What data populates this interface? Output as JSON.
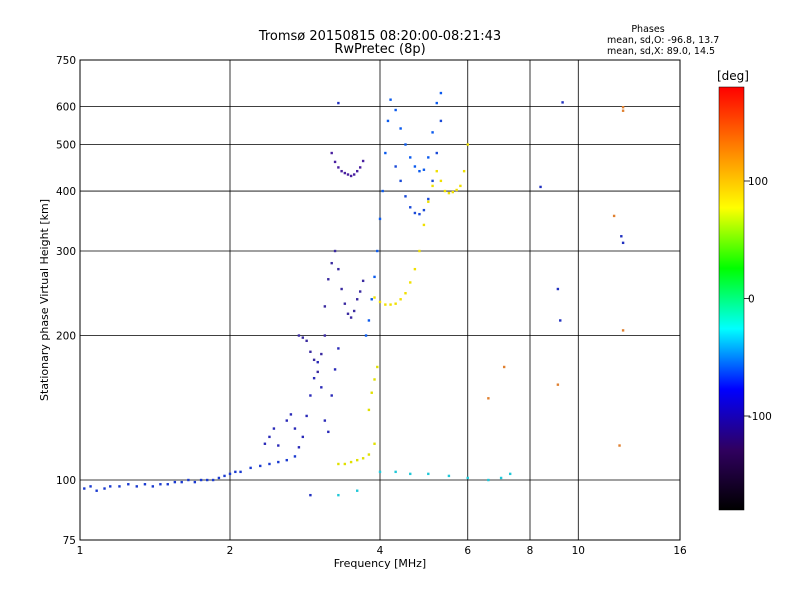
{
  "chart_data": {
    "type": "scatter",
    "title": "Tromsø 20150815 08:20:00-08:21:43",
    "subtitle": "RwPretec (8p)",
    "xlabel": "Frequency [MHz]",
    "ylabel": "Stationary phase Virtual Height [km]",
    "x_scale": "log",
    "y_scale": "log",
    "xlim": [
      1,
      16
    ],
    "ylim": [
      75,
      750
    ],
    "x_ticks": [
      1,
      2,
      4,
      6,
      8,
      10,
      16
    ],
    "y_ticks": [
      75,
      100,
      200,
      300,
      400,
      500,
      600,
      750
    ],
    "grid": true,
    "phase_info": {
      "title": "Phases",
      "line_o": "mean, sd,O: -96.8, 13.7",
      "line_x": "mean, sd,X:  89.0, 14.5"
    },
    "colorbar": {
      "label": "[deg]",
      "range": [
        -180,
        180
      ],
      "ticks": [
        100,
        0,
        -100
      ],
      "colors": [
        "#ff0000",
        "#ff8000",
        "#ffff00",
        "#00ff00",
        "#00ffff",
        "#0000ff",
        "#300060",
        "#000000"
      ]
    },
    "series": [
      {
        "color": "#1a3ad0",
        "points": [
          [
            1.02,
            96
          ],
          [
            1.05,
            97
          ],
          [
            1.08,
            95
          ],
          [
            1.12,
            96
          ],
          [
            1.15,
            97
          ],
          [
            1.2,
            97
          ],
          [
            1.25,
            98
          ],
          [
            1.3,
            97
          ],
          [
            1.35,
            98
          ],
          [
            1.4,
            97
          ],
          [
            1.45,
            98
          ],
          [
            1.5,
            98
          ],
          [
            1.55,
            99
          ],
          [
            1.6,
            99
          ],
          [
            1.65,
            100
          ],
          [
            1.7,
            99
          ],
          [
            1.75,
            100
          ],
          [
            1.8,
            100
          ],
          [
            1.85,
            100
          ],
          [
            1.9,
            101
          ],
          [
            1.95,
            102
          ],
          [
            2.0,
            103
          ],
          [
            2.05,
            104
          ],
          [
            2.1,
            104
          ],
          [
            2.2,
            106
          ],
          [
            2.3,
            107
          ],
          [
            2.4,
            108
          ],
          [
            2.5,
            109
          ],
          [
            2.6,
            110
          ],
          [
            2.7,
            112
          ]
        ]
      },
      {
        "color": "#2a2ab8",
        "points": [
          [
            2.35,
            119
          ],
          [
            2.4,
            123
          ],
          [
            2.45,
            128
          ],
          [
            2.5,
            118
          ],
          [
            2.6,
            133
          ],
          [
            2.65,
            137
          ],
          [
            2.7,
            128
          ],
          [
            2.75,
            117
          ],
          [
            2.8,
            123
          ],
          [
            2.85,
            136
          ],
          [
            2.9,
            150
          ],
          [
            2.95,
            163
          ],
          [
            3.0,
            176
          ],
          [
            3.05,
            156
          ],
          [
            3.1,
            133
          ],
          [
            3.15,
            126
          ],
          [
            3.2,
            150
          ],
          [
            3.25,
            170
          ],
          [
            3.3,
            188
          ]
        ]
      },
      {
        "color": "#3a2aa0",
        "points": [
          [
            2.75,
            200
          ],
          [
            2.8,
            198
          ],
          [
            2.85,
            195
          ],
          [
            2.9,
            185
          ],
          [
            2.95,
            178
          ],
          [
            3.0,
            168
          ],
          [
            3.05,
            183
          ],
          [
            3.1,
            200
          ],
          [
            3.1,
            230
          ],
          [
            3.15,
            262
          ],
          [
            3.2,
            283
          ],
          [
            3.25,
            300
          ],
          [
            3.3,
            275
          ],
          [
            3.35,
            250
          ],
          [
            3.4,
            233
          ],
          [
            3.45,
            222
          ],
          [
            3.5,
            218
          ],
          [
            3.55,
            225
          ],
          [
            3.6,
            238
          ],
          [
            3.65,
            247
          ],
          [
            3.7,
            260
          ]
        ]
      },
      {
        "color": "#4a20a0",
        "points": [
          [
            3.2,
            480
          ],
          [
            3.25,
            460
          ],
          [
            3.3,
            448
          ],
          [
            3.35,
            440
          ],
          [
            3.4,
            436
          ],
          [
            3.45,
            433
          ],
          [
            3.5,
            430
          ],
          [
            3.55,
            433
          ],
          [
            3.6,
            440
          ],
          [
            3.65,
            448
          ],
          [
            3.7,
            462
          ]
        ]
      },
      {
        "color": "#0a5aee",
        "points": [
          [
            3.75,
            200
          ],
          [
            3.8,
            215
          ],
          [
            3.85,
            238
          ],
          [
            3.9,
            265
          ],
          [
            3.95,
            300
          ],
          [
            4.0,
            350
          ],
          [
            4.05,
            400
          ],
          [
            4.1,
            480
          ],
          [
            4.15,
            560
          ],
          [
            4.2,
            620
          ],
          [
            4.3,
            590
          ],
          [
            4.4,
            540
          ],
          [
            4.5,
            500
          ],
          [
            4.6,
            470
          ],
          [
            4.7,
            450
          ],
          [
            4.8,
            440
          ],
          [
            4.9,
            443
          ],
          [
            5.0,
            470
          ],
          [
            5.1,
            530
          ],
          [
            5.2,
            610
          ],
          [
            5.3,
            640
          ]
        ]
      },
      {
        "color": "#1a4ad8",
        "points": [
          [
            4.3,
            450
          ],
          [
            4.4,
            420
          ],
          [
            4.5,
            390
          ],
          [
            4.6,
            370
          ],
          [
            4.7,
            360
          ],
          [
            4.8,
            358
          ],
          [
            4.9,
            365
          ],
          [
            5.0,
            385
          ],
          [
            5.1,
            420
          ],
          [
            5.2,
            480
          ],
          [
            5.3,
            560
          ]
        ]
      },
      {
        "color": "#f0e000",
        "points": [
          [
            3.9,
            240
          ],
          [
            4.0,
            235
          ],
          [
            4.1,
            232
          ],
          [
            4.2,
            232
          ],
          [
            4.3,
            233
          ],
          [
            4.4,
            238
          ],
          [
            4.5,
            245
          ],
          [
            4.6,
            258
          ],
          [
            4.7,
            275
          ],
          [
            4.8,
            300
          ],
          [
            4.9,
            340
          ],
          [
            5.0,
            380
          ],
          [
            5.1,
            410
          ],
          [
            5.2,
            440
          ],
          [
            5.3,
            420
          ],
          [
            5.4,
            400
          ],
          [
            5.5,
            396
          ],
          [
            5.6,
            398
          ],
          [
            5.7,
            402
          ],
          [
            5.8,
            410
          ],
          [
            5.9,
            440
          ],
          [
            6.0,
            500
          ]
        ]
      },
      {
        "color": "#e0e000",
        "points": [
          [
            3.3,
            108
          ],
          [
            3.4,
            108
          ],
          [
            3.5,
            109
          ],
          [
            3.6,
            110
          ],
          [
            3.7,
            111
          ],
          [
            3.8,
            113
          ],
          [
            3.9,
            119
          ],
          [
            3.8,
            140
          ],
          [
            3.85,
            152
          ],
          [
            3.9,
            162
          ],
          [
            3.95,
            172
          ]
        ]
      },
      {
        "color": "#20c8d8",
        "points": [
          [
            4.0,
            104
          ],
          [
            4.3,
            104
          ],
          [
            4.6,
            103
          ],
          [
            5.0,
            103
          ],
          [
            5.5,
            102
          ],
          [
            6.0,
            101
          ],
          [
            6.6,
            100
          ],
          [
            7.0,
            101
          ],
          [
            7.3,
            103
          ],
          [
            3.3,
            93
          ],
          [
            3.6,
            95
          ]
        ]
      },
      {
        "color": "#e08030",
        "points": [
          [
            6.6,
            148
          ],
          [
            7.1,
            172
          ],
          [
            9.1,
            158
          ],
          [
            12.1,
            118
          ],
          [
            12.3,
            205
          ],
          [
            12.3,
            588
          ],
          [
            12.3,
            598
          ],
          [
            11.8,
            355
          ]
        ]
      },
      {
        "color": "#2030c0",
        "points": [
          [
            9.1,
            250
          ],
          [
            9.2,
            215
          ],
          [
            9.3,
            612
          ],
          [
            8.4,
            408
          ],
          [
            12.2,
            322
          ],
          [
            12.3,
            312
          ],
          [
            3.3,
            610
          ],
          [
            2.9,
            93
          ]
        ]
      }
    ]
  }
}
